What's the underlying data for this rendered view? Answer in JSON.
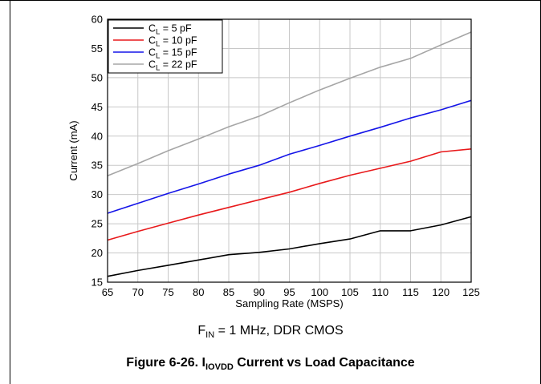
{
  "chart_data": {
    "type": "line",
    "xlabel": "Sampling Rate (MSPS)",
    "ylabel": "Current (mA)",
    "xlim": [
      65,
      125
    ],
    "ylim": [
      15,
      60
    ],
    "xticks": [
      65,
      70,
      75,
      80,
      85,
      90,
      95,
      100,
      105,
      110,
      115,
      120,
      125
    ],
    "yticks": [
      15,
      20,
      25,
      30,
      35,
      40,
      45,
      50,
      55,
      60
    ],
    "grid": true,
    "legend_position": "top-left",
    "x": [
      65,
      70,
      75,
      80,
      85,
      90,
      95,
      100,
      105,
      110,
      115,
      120,
      125
    ],
    "series": [
      {
        "name_main": "C",
        "name_sub": "L",
        "name_rest": " = 5 pF",
        "color": "#000000",
        "values": [
          16.0,
          17.0,
          17.9,
          18.8,
          19.7,
          20.1,
          20.7,
          21.6,
          22.4,
          23.8,
          23.8,
          24.8,
          26.2
        ]
      },
      {
        "name_main": "C",
        "name_sub": "L",
        "name_rest": " = 10 pF",
        "color": "#e8191b",
        "values": [
          22.2,
          23.7,
          25.1,
          26.5,
          27.8,
          29.1,
          30.4,
          31.9,
          33.3,
          34.5,
          35.7,
          37.3,
          37.8
        ]
      },
      {
        "name_main": "C",
        "name_sub": "L",
        "name_rest": " = 15 pF",
        "color": "#1515e8",
        "values": [
          26.8,
          28.5,
          30.2,
          31.8,
          33.5,
          35.0,
          36.9,
          38.4,
          40.0,
          41.5,
          43.1,
          44.5,
          46.1
        ]
      },
      {
        "name_main": "C",
        "name_sub": "L",
        "name_rest": " = 22 pF",
        "color": "#a6a6a6",
        "values": [
          33.2,
          35.3,
          37.5,
          39.5,
          41.6,
          43.4,
          45.7,
          47.9,
          49.9,
          51.8,
          53.3,
          55.6,
          57.8
        ]
      }
    ]
  },
  "note": {
    "main": "F",
    "sub": "IN",
    "rest": " = 1 MHz, DDR CMOS"
  },
  "caption": {
    "prefix": "Figure 6-26. I",
    "sub": "IOVDD",
    "rest": " Current vs Load Capacitance"
  }
}
